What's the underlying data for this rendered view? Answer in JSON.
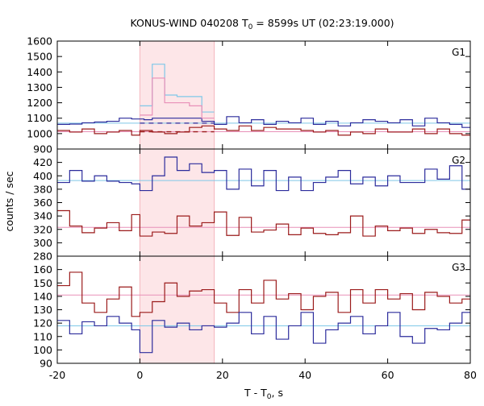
{
  "chart_data": {
    "type": "line",
    "title": {
      "prefix": "KONUS-WIND 040208 T",
      "sub": "0",
      "suffix": " = 8599s UT (02:23:19.000)"
    },
    "xlabel": {
      "prefix": "T - T",
      "sub": "0",
      "suffix": ", s"
    },
    "ylabel": "counts / sec",
    "xlim": [
      -20,
      80
    ],
    "xticks": [
      -20,
      0,
      20,
      40,
      60,
      80
    ],
    "xtick_labels": [
      "-20",
      "0",
      "20",
      "40",
      "60",
      "80"
    ],
    "shaded_interval": [
      0,
      18.0
    ],
    "colors": {
      "shade": "#fde6e8",
      "shade_edge": "#f4b6bd",
      "blue": "#2c2c9c",
      "red": "#9b1b1b",
      "cyan": "#7fc8e8",
      "pink": "#e890b8"
    },
    "panels": [
      {
        "label": "G1",
        "ylim": [
          900,
          1600
        ],
        "yticks": [
          900,
          1000,
          1100,
          1200,
          1300,
          1400,
          1500,
          1600
        ],
        "ytick_labels": [
          "900",
          "1000",
          "1100",
          "1200",
          "1300",
          "1400",
          "1500",
          "1600"
        ],
        "series": [
          {
            "color": "blue",
            "edges": [
              -20,
              -17,
              -14,
              -11,
              -8,
              -5,
              -2,
              1,
              3,
              6,
              9,
              12,
              15,
              18,
              21,
              24,
              27,
              30,
              33,
              36,
              39,
              42,
              45,
              48,
              51,
              54,
              57,
              60,
              63,
              66,
              69,
              72,
              75,
              78,
              80
            ],
            "values": [
              1060,
              1062,
              1070,
              1075,
              1080,
              1100,
              1095,
              1090,
              1100,
              1100,
              1100,
              1100,
              1080,
              1060,
              1110,
              1070,
              1090,
              1060,
              1080,
              1070,
              1100,
              1060,
              1080,
              1050,
              1070,
              1090,
              1080,
              1070,
              1090,
              1050,
              1100,
              1070,
              1060,
              1040
            ]
          },
          {
            "color": "red",
            "edges": [
              -20,
              -17,
              -14,
              -11,
              -8,
              -5,
              -2,
              0,
              3,
              6,
              9,
              12,
              15,
              18,
              21,
              24,
              27,
              30,
              33,
              36,
              39,
              42,
              45,
              48,
              51,
              54,
              57,
              60,
              63,
              66,
              69,
              72,
              75,
              78,
              80
            ],
            "values": [
              1020,
              1010,
              1030,
              1000,
              1010,
              1020,
              990,
              1020,
              1010,
              1000,
              1010,
              1040,
              1050,
              1030,
              1020,
              1050,
              1020,
              1040,
              1030,
              1030,
              1020,
              1010,
              1020,
              990,
              1010,
              1000,
              1030,
              1010,
              1010,
              1030,
              1000,
              1030,
              1000,
              990
            ]
          },
          {
            "color": "cyan",
            "edges": [
              0,
              3,
              6,
              9,
              12,
              15,
              18
            ],
            "values": [
              1180,
              1450,
              1250,
              1240,
              1240,
              1140
            ]
          },
          {
            "color": "pink",
            "edges": [
              0,
              3,
              6,
              9,
              12,
              15,
              18
            ],
            "values": [
              1120,
              1360,
              1200,
              1200,
              1180,
              1100
            ]
          }
        ],
        "hlines": [
          {
            "color": "cyan",
            "value": 1068,
            "dashed": false,
            "x": [
              -20,
              80
            ]
          },
          {
            "color": "pink",
            "value": 1012,
            "dashed": false,
            "x": [
              -20,
              80
            ]
          },
          {
            "color": "blue",
            "value": 1068,
            "dashed": true,
            "x": [
              0,
              18
            ]
          },
          {
            "color": "red",
            "value": 1012,
            "dashed": true,
            "x": [
              0,
              18
            ]
          }
        ]
      },
      {
        "label": "G2",
        "ylim": [
          280,
          440
        ],
        "yticks": [
          280,
          300,
          320,
          340,
          360,
          380,
          400,
          420
        ],
        "ytick_labels": [
          "280",
          "300",
          "320",
          "340",
          "360",
          "380",
          "400",
          "420"
        ],
        "series": [
          {
            "color": "blue",
            "edges": [
              -20,
              -17,
              -14,
              -11,
              -8,
              -5,
              -2,
              0,
              3,
              6,
              9,
              12,
              15,
              18,
              21,
              24,
              27,
              30,
              33,
              36,
              39,
              42,
              45,
              48,
              51,
              54,
              57,
              60,
              63,
              66,
              69,
              72,
              75,
              78,
              80
            ],
            "values": [
              390,
              408,
              392,
              400,
              392,
              390,
              388,
              378,
              400,
              428,
              408,
              418,
              405,
              408,
              380,
              410,
              385,
              408,
              378,
              398,
              378,
              390,
              398,
              408,
              388,
              398,
              385,
              400,
              390,
              390,
              410,
              395,
              415,
              380
            ]
          },
          {
            "color": "red",
            "edges": [
              -20,
              -17,
              -14,
              -11,
              -8,
              -5,
              -2,
              0,
              3,
              6,
              9,
              12,
              15,
              18,
              21,
              24,
              27,
              30,
              33,
              36,
              39,
              42,
              45,
              48,
              51,
              54,
              57,
              60,
              63,
              66,
              69,
              72,
              75,
              78,
              80
            ],
            "values": [
              348,
              325,
              315,
              322,
              330,
              318,
              342,
              310,
              316,
              314,
              340,
              325,
              330,
              346,
              311,
              338,
              316,
              319,
              328,
              312,
              322,
              314,
              312,
              315,
              340,
              310,
              325,
              318,
              322,
              314,
              320,
              315,
              314,
              334
            ]
          }
        ],
        "hlines": [
          {
            "color": "cyan",
            "value": 393,
            "dashed": false,
            "x": [
              -20,
              80
            ]
          },
          {
            "color": "pink",
            "value": 323,
            "dashed": false,
            "x": [
              -20,
              80
            ]
          }
        ]
      },
      {
        "label": "G3",
        "ylim": [
          90,
          170
        ],
        "yticks": [
          90,
          100,
          110,
          120,
          130,
          140,
          150,
          160
        ],
        "ytick_labels": [
          "90",
          "100",
          "110",
          "120",
          "130",
          "140",
          "150",
          "160"
        ],
        "series": [
          {
            "color": "red",
            "edges": [
              -20,
              -17,
              -14,
              -11,
              -8,
              -5,
              -2,
              0,
              3,
              6,
              9,
              12,
              15,
              18,
              21,
              24,
              27,
              30,
              33,
              36,
              39,
              42,
              45,
              48,
              51,
              54,
              57,
              60,
              63,
              66,
              69,
              72,
              75,
              78,
              80
            ],
            "values": [
              148,
              158,
              135,
              128,
              138,
              147,
              125,
              128,
              136,
              150,
              140,
              144,
              145,
              135,
              128,
              145,
              135,
              152,
              138,
              142,
              130,
              140,
              143,
              128,
              145,
              135,
              145,
              138,
              142,
              130,
              143,
              140,
              135,
              138
            ]
          },
          {
            "color": "blue",
            "edges": [
              -20,
              -17,
              -14,
              -11,
              -8,
              -5,
              -2,
              0,
              3,
              6,
              9,
              12,
              15,
              18,
              21,
              24,
              27,
              30,
              33,
              36,
              39,
              42,
              45,
              48,
              51,
              54,
              57,
              60,
              63,
              66,
              69,
              72,
              75,
              78,
              80
            ],
            "values": [
              122,
              112,
              121,
              118,
              125,
              120,
              115,
              98,
              122,
              117,
              120,
              115,
              118,
              117,
              120,
              128,
              112,
              125,
              108,
              118,
              128,
              105,
              115,
              120,
              125,
              112,
              118,
              128,
              110,
              105,
              116,
              115,
              120,
              128
            ]
          }
        ],
        "hlines": [
          {
            "color": "pink",
            "value": 141,
            "dashed": false,
            "x": [
              -20,
              80
            ]
          },
          {
            "color": "cyan",
            "value": 118,
            "dashed": false,
            "x": [
              -20,
              80
            ]
          }
        ]
      }
    ]
  }
}
